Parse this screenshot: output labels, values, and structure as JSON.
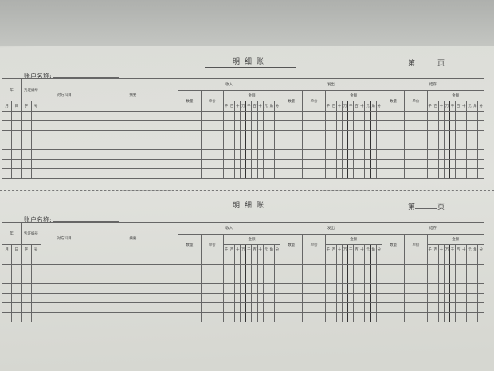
{
  "forms": [
    {
      "title": "明细账",
      "page_prefix": "第",
      "page_suffix": "页",
      "account_label": "账户名称:",
      "headers": {
        "year": "年",
        "voucher_no": "凭证编号",
        "month": "月",
        "day": "日",
        "zi": "字",
        "hao": "号",
        "counter_account": "对方科目",
        "summary": "摘要",
        "sections": [
          "收入",
          "发出",
          "结存"
        ],
        "quantity": "数量",
        "unit_price": "单价",
        "amount": "金额",
        "digits": [
          "千",
          "百",
          "十",
          "万",
          "千",
          "百",
          "十",
          "元",
          "角",
          "分"
        ]
      },
      "body_rows": 7
    },
    {
      "title": "明细账",
      "page_prefix": "第",
      "page_suffix": "页",
      "account_label": "账户名称:",
      "headers": {
        "year": "年",
        "voucher_no": "凭证编号",
        "month": "月",
        "day": "日",
        "zi": "字",
        "hao": "号",
        "counter_account": "对方科目",
        "summary": "摘要",
        "sections": [
          "收入",
          "发出",
          "结存"
        ],
        "quantity": "数量",
        "unit_price": "单价",
        "amount": "金额",
        "digits": [
          "千",
          "百",
          "十",
          "万",
          "千",
          "百",
          "十",
          "元",
          "角",
          "分"
        ]
      },
      "body_rows": 7
    }
  ]
}
